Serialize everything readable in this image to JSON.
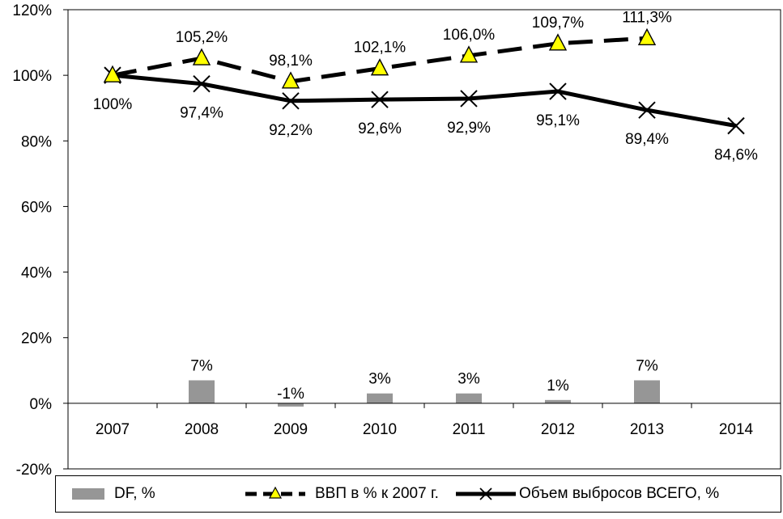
{
  "chart_data": {
    "type": "line",
    "categories": [
      "2007",
      "2008",
      "2009",
      "2010",
      "2011",
      "2012",
      "2013",
      "2014"
    ],
    "ylim": [
      -0.2,
      1.2
    ],
    "yticks": [
      -0.2,
      0,
      0.2,
      0.4,
      0.6,
      0.8,
      1.0,
      1.2
    ],
    "ytick_labels": [
      "-20%",
      "0%",
      "20%",
      "40%",
      "60%",
      "80%",
      "100%",
      "120%"
    ],
    "grid": false,
    "legend_position": "bottom",
    "series": [
      {
        "name": "DF, %",
        "kind": "bar",
        "color": "#969696",
        "values": [
          null,
          0.07,
          -0.01,
          0.03,
          0.03,
          0.01,
          0.07,
          null
        ],
        "labels": [
          null,
          "7%",
          "-1%",
          "3%",
          "3%",
          "1%",
          "7%",
          null
        ]
      },
      {
        "name": "ВВП в % к 2007 г.",
        "kind": "line",
        "style": "dashed",
        "marker": "triangle",
        "color": "#000000",
        "marker_fill": "#ffff00",
        "values": [
          1.0,
          1.052,
          0.981,
          1.021,
          1.06,
          1.097,
          1.113,
          null
        ],
        "labels": [
          null,
          "105,2%",
          "98,1%",
          "102,1%",
          "106,0%",
          "109,7%",
          "111,3%",
          null
        ]
      },
      {
        "name": "Объем выбросов ВСЕГО, %",
        "kind": "line",
        "style": "solid",
        "marker": "x",
        "color": "#000000",
        "values": [
          1.0,
          0.974,
          0.922,
          0.926,
          0.929,
          0.951,
          0.894,
          0.846
        ],
        "labels": [
          "100%",
          "97,4%",
          "92,2%",
          "92,6%",
          "92,9%",
          "95,1%",
          "89,4%",
          "84,6%"
        ]
      }
    ]
  }
}
